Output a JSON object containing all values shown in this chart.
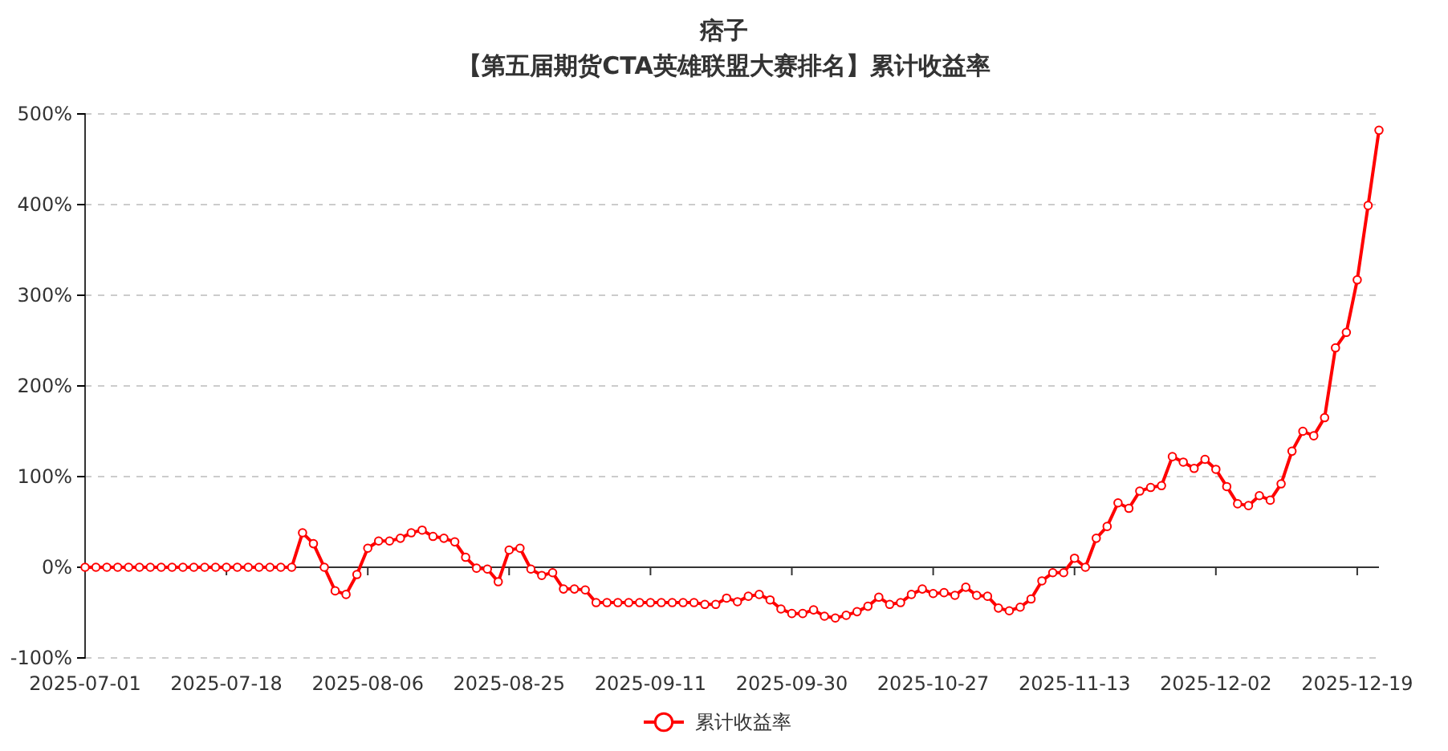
{
  "chart_data": {
    "type": "line",
    "title": "痞子",
    "subtitle": "【第五届期货CTA英雄联盟大赛排名】累计收益率",
    "categories": [
      "2025-07-01",
      null,
      null,
      null,
      null,
      null,
      null,
      null,
      null,
      null,
      null,
      null,
      null,
      "2025-07-18",
      null,
      null,
      null,
      null,
      null,
      null,
      null,
      null,
      null,
      null,
      null,
      null,
      "2025-08-06",
      null,
      null,
      null,
      null,
      null,
      null,
      null,
      null,
      null,
      null,
      null,
      null,
      "2025-08-25",
      null,
      null,
      null,
      null,
      null,
      null,
      null,
      null,
      null,
      null,
      null,
      null,
      "2025-09-11",
      null,
      null,
      null,
      null,
      null,
      null,
      null,
      null,
      null,
      null,
      null,
      null,
      "2025-09-30",
      null,
      null,
      null,
      null,
      null,
      null,
      null,
      null,
      null,
      null,
      null,
      null,
      "2025-10-27",
      null,
      null,
      null,
      null,
      null,
      null,
      null,
      null,
      null,
      null,
      null,
      null,
      "2025-11-13",
      null,
      null,
      null,
      null,
      null,
      null,
      null,
      null,
      null,
      null,
      null,
      null,
      "2025-12-02",
      null,
      null,
      null,
      null,
      null,
      null,
      null,
      null,
      null,
      null,
      null,
      null,
      "2025-12-19",
      null,
      null
    ],
    "series": [
      {
        "name": "累计收益率",
        "color": "#ff0000",
        "values": [
          0,
          0,
          0,
          0,
          0,
          0,
          0,
          0,
          0,
          0,
          0,
          0,
          0,
          0,
          0,
          0,
          0,
          0,
          0,
          0,
          38,
          26,
          0,
          -26,
          -30,
          -8,
          21,
          29,
          29,
          32,
          38,
          41,
          34,
          32,
          28,
          11,
          -1,
          -2,
          -16,
          19,
          21,
          -2,
          -9,
          -6,
          -24,
          -24,
          -25,
          -39,
          -39,
          -39,
          -39,
          -39,
          -39,
          -39,
          -39,
          -39,
          -39,
          -41,
          -41,
          -34,
          -38,
          -32,
          -30,
          -36,
          -46,
          -51,
          -51,
          -47,
          -54,
          -56,
          -53,
          -49,
          -43,
          -33,
          -41,
          -39,
          -30,
          -24,
          -29,
          -28,
          -31,
          -22,
          -31,
          -32,
          -45,
          -48,
          -44,
          -35,
          -15,
          -6,
          -6,
          10,
          0,
          32,
          45,
          71,
          65,
          84,
          88,
          90,
          122,
          116,
          109,
          119,
          108,
          89,
          70,
          68,
          79,
          74,
          92,
          128,
          150,
          145,
          165,
          242,
          259,
          317,
          399,
          482
        ]
      }
    ],
    "ylim": [
      -100,
      500
    ],
    "yticks": [
      {
        "value": -100,
        "label": "-100%"
      },
      {
        "value": 0,
        "label": "0%"
      },
      {
        "value": 100,
        "label": "100%"
      },
      {
        "value": 200,
        "label": "200%"
      },
      {
        "value": 300,
        "label": "300%"
      },
      {
        "value": 400,
        "label": "400%"
      },
      {
        "value": 500,
        "label": "500%"
      }
    ],
    "grid": "y",
    "legend": "bottom",
    "marker": "circle",
    "line_style": "solid"
  }
}
